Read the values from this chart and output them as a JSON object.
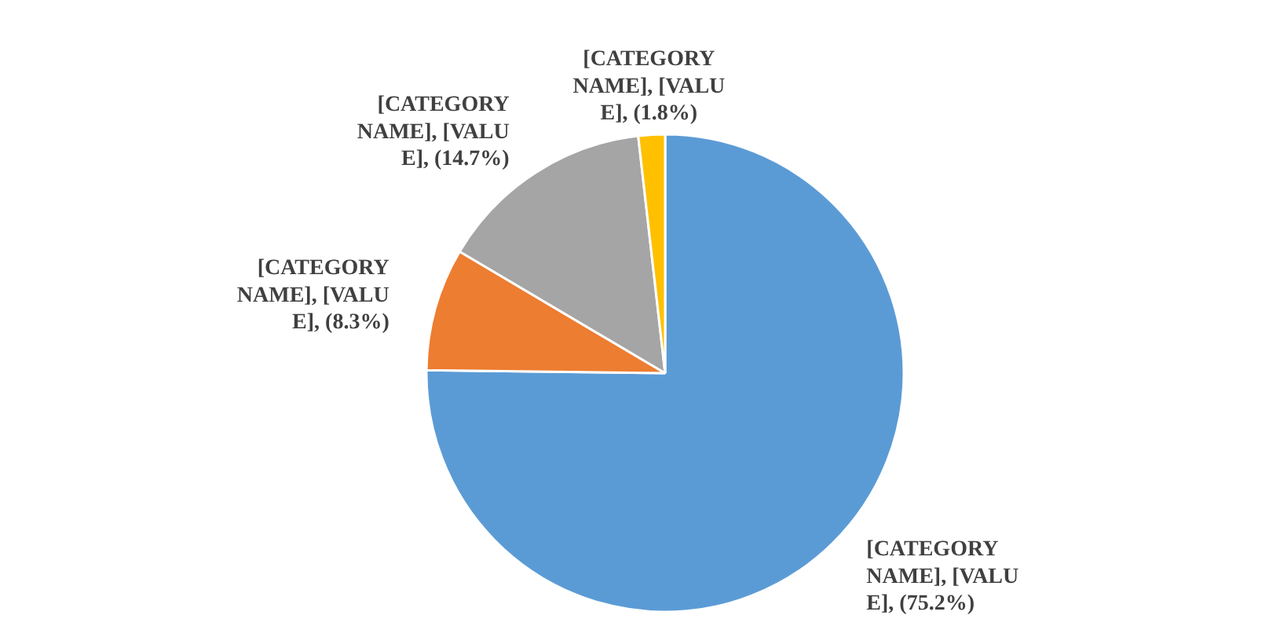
{
  "chart_data": {
    "type": "pie",
    "categories": [
      null,
      null,
      null,
      null
    ],
    "values": [
      75.2,
      8.3,
      14.7,
      1.8
    ],
    "colors": [
      "#5b9bd5",
      "#ed7d31",
      "#a5a5a5",
      "#ffc000"
    ],
    "value_labels": [
      "[CATEGORY\nNAME], [VALU\nE], (75.2%)",
      "[CATEGORY\nNAME], [VALU\nE], (8.3%)",
      "[CATEGORY\nNAME], [VALU\nE], (14.7%)",
      "[CATEGORY\nNAME], [VALU\nE], (1.8%)"
    ]
  }
}
